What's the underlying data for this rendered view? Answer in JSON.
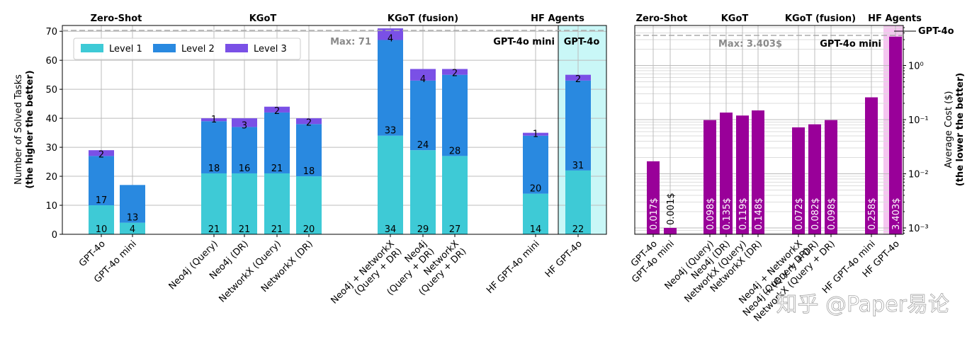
{
  "chart_data": [
    {
      "type": "bar",
      "stacked": true,
      "ylabel": "Number of Solved Tasks",
      "ylabel2": "(the higher the better)",
      "ylim": [
        0,
        72
      ],
      "yticks": [
        0,
        10,
        20,
        30,
        40,
        50,
        60,
        70
      ],
      "max_line": {
        "value": 71,
        "label": "Max: 71"
      },
      "legend": {
        "position": "top-left",
        "entries": [
          "Level 1",
          "Level 2",
          "Level 3"
        ]
      },
      "colors": {
        "Level 1": "#3ecad6",
        "Level 2": "#2989e0",
        "Level 3": "#7a50e6"
      },
      "groups": [
        {
          "name": "Zero-Shot",
          "categories": [
            0,
            1
          ]
        },
        {
          "name": "KGoT",
          "categories": [
            2,
            3,
            4,
            5
          ]
        },
        {
          "name": "KGoT (fusion)",
          "categories": [
            6,
            7,
            8
          ]
        },
        {
          "name": "HF Agents",
          "categories": [
            9,
            10
          ]
        }
      ],
      "categories": [
        [
          "GPT-4o"
        ],
        [
          "GPT-4o mini"
        ],
        [
          "Neo4j (Query)"
        ],
        [
          "Neo4j (DR)"
        ],
        [
          "NetworkX (Query)"
        ],
        [
          "NetworkX (DR)"
        ],
        [
          "Neo4j + NetworkX",
          "(Query + DR)"
        ],
        [
          "Neo4j",
          "(Query + DR)"
        ],
        [
          "NetworkX",
          "(Query + DR)"
        ],
        [
          "HF GPT-4o mini"
        ],
        [
          "HF GPT-4o"
        ]
      ],
      "series": [
        {
          "name": "Level 1",
          "values": [
            10,
            4,
            21,
            21,
            21,
            20,
            34,
            29,
            27,
            14,
            22
          ]
        },
        {
          "name": "Level 2",
          "values": [
            17,
            13,
            18,
            16,
            21,
            18,
            33,
            24,
            28,
            20,
            31
          ]
        },
        {
          "name": "Level 3",
          "values": [
            2,
            0,
            1,
            3,
            2,
            2,
            4,
            4,
            2,
            1,
            2
          ]
        }
      ],
      "top_labels": [
        "2",
        "",
        "1",
        "3",
        "2",
        "2",
        "4",
        "4",
        "2",
        "1",
        "2"
      ],
      "model_annotations": [
        "GPT-4o mini",
        "GPT-4o"
      ]
    },
    {
      "type": "bar",
      "scale": "log",
      "ylabel": "Average Cost ($)",
      "ylabel2": "(the lower the better)",
      "ylim": [
        0.0008,
        5
      ],
      "ytick_labels": [
        "10⁻³",
        "10⁻²",
        "10⁻¹",
        "10⁰"
      ],
      "max_line": {
        "value": 3.403,
        "label": "Max: 3.403$"
      },
      "bar_color": "#990099",
      "groups": [
        {
          "name": "Zero-Shot",
          "categories": [
            0,
            1
          ]
        },
        {
          "name": "KGoT",
          "categories": [
            2,
            3,
            4,
            5
          ]
        },
        {
          "name": "KGoT (fusion)",
          "categories": [
            6,
            7,
            8
          ]
        },
        {
          "name": "HF Agents",
          "categories": [
            9,
            10
          ]
        }
      ],
      "categories": [
        [
          "GPT-4o"
        ],
        [
          "GPT-4o mini"
        ],
        [
          "Neo4j (Query)"
        ],
        [
          "Neo4j (DR)"
        ],
        [
          "NetworkX (Query)"
        ],
        [
          "NetworkX (DR)"
        ],
        [
          "Neo4j + NetworkX",
          "(Query + DR)"
        ],
        [
          "Neo4j + (Query + DR)"
        ],
        [
          "NetworkX (Query + DR)"
        ],
        [
          "HF GPT-4o mini"
        ],
        [
          "HF GPT-4o"
        ]
      ],
      "values": [
        0.017,
        0.001,
        0.098,
        0.135,
        0.119,
        0.148,
        0.072,
        0.082,
        0.098,
        0.258,
        3.403
      ],
      "value_labels": [
        "0.017$",
        "0.001$",
        "0.098$",
        "0.135$",
        "0.119$",
        "0.148$",
        "0.072$",
        "0.082$",
        "0.098$",
        "0.258$",
        "3.403$"
      ],
      "model_annotations": [
        "GPT-4o mini",
        "GPT-4o"
      ]
    }
  ],
  "watermark": "知乎 @Paper易论"
}
